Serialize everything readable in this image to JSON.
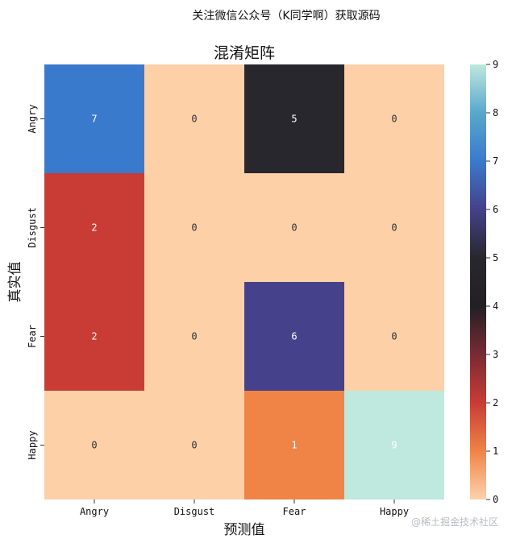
{
  "header": {
    "caption": "关注微信公众号（K同学啊）获取源码",
    "watermark": "@稀土掘金技术社区"
  },
  "chart_data": {
    "type": "heatmap",
    "title": "混淆矩阵",
    "xlabel": "预测值",
    "ylabel": "真实值",
    "x_categories": [
      "Angry",
      "Disgust",
      "Fear",
      "Happy"
    ],
    "y_categories": [
      "Angry",
      "Disgust",
      "Fear",
      "Happy"
    ],
    "values": [
      [
        7,
        0,
        5,
        0
      ],
      [
        2,
        0,
        0,
        0
      ],
      [
        2,
        0,
        6,
        0
      ],
      [
        0,
        0,
        1,
        9
      ]
    ],
    "colorbar": {
      "min": 0,
      "max": 9,
      "ticks": [
        0,
        1,
        2,
        3,
        4,
        5,
        6,
        7,
        8,
        9
      ]
    },
    "colormap": "icefire_r",
    "colors": {
      "0": "#fdd0a8",
      "1": "#ef8446",
      "2": "#c83c35",
      "5": "#28272d",
      "6": "#45418a",
      "7": "#3a7acc",
      "9": "#bfe8de"
    }
  }
}
